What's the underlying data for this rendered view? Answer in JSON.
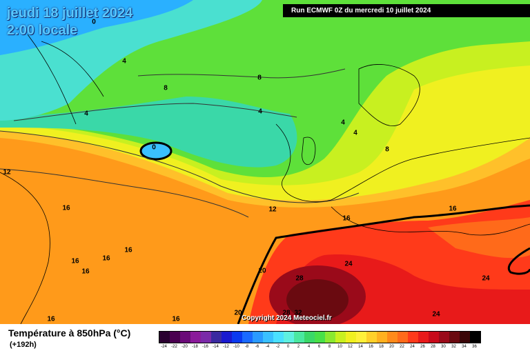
{
  "header": {
    "date": "jeudi 18 juillet 2024",
    "time": "2:00 locale",
    "run": "Run ECMWF 0Z du mercredi 10 juillet 2024"
  },
  "copyright": "Copyright 2024 Meteociel.fr",
  "legend": {
    "title": "Température à 850hPa (°C)",
    "subtitle": "(+192h)",
    "ticks": [
      "-24",
      "-22",
      "-20",
      "-18",
      "-16",
      "-14",
      "-12",
      "-10",
      "-8",
      "-6",
      "-4",
      "-2",
      "0",
      "2",
      "4",
      "6",
      "8",
      "10",
      "12",
      "14",
      "16",
      "18",
      "20",
      "22",
      "24",
      "26",
      "28",
      "30",
      "32",
      "34",
      "36"
    ],
    "colors": [
      "#2a0030",
      "#4a0050",
      "#6a0a78",
      "#8a1a9a",
      "#7a2aa8",
      "#3a2aa0",
      "#1a1ad0",
      "#0a3af0",
      "#1a6aff",
      "#2a9aff",
      "#3ac0ff",
      "#4ae0ff",
      "#5ef0e0",
      "#4ae8a0",
      "#3ad868",
      "#48e048",
      "#8ae830",
      "#c8f020",
      "#f0f020",
      "#fff03a",
      "#ffd02a",
      "#ffb020",
      "#ff8a1a",
      "#ff6a1a",
      "#ff3a1a",
      "#e81a1a",
      "#c80a1a",
      "#9a0a1a",
      "#6a0a10",
      "#3a0608",
      "#000000"
    ]
  },
  "map_labels": [
    {
      "text": "0"
    },
    {
      "text": "4"
    },
    {
      "text": "8"
    },
    {
      "text": "4"
    },
    {
      "text": "8"
    },
    {
      "text": "4"
    },
    {
      "text": "4"
    },
    {
      "text": "0"
    },
    {
      "text": "4"
    },
    {
      "text": "8"
    },
    {
      "text": "12"
    },
    {
      "text": "16"
    },
    {
      "text": "12"
    },
    {
      "text": "16"
    },
    {
      "text": "16"
    },
    {
      "text": "16"
    },
    {
      "text": "16"
    },
    {
      "text": "16"
    },
    {
      "text": "16"
    },
    {
      "text": "20"
    },
    {
      "text": "24"
    },
    {
      "text": "28"
    },
    {
      "text": "28"
    },
    {
      "text": "32"
    },
    {
      "text": "24"
    },
    {
      "text": "24"
    },
    {
      "text": "20"
    },
    {
      "text": "16"
    },
    {
      "text": "16"
    }
  ]
}
